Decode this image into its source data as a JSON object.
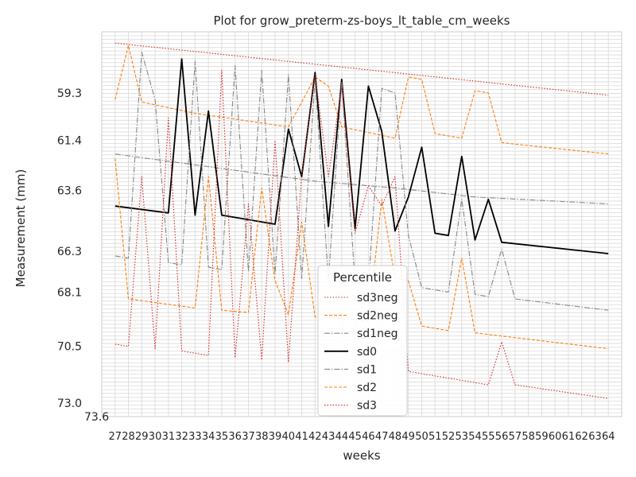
{
  "chart_data": {
    "type": "line",
    "title": "Plot for grow_preterm-zs-boys_lt_table_cm_weeks",
    "xlabel": "weeks",
    "ylabel": "Measurement (mm)",
    "x": [
      27,
      28,
      29,
      30,
      31,
      32,
      33,
      34,
      35,
      36,
      37,
      38,
      39,
      40,
      41,
      42,
      43,
      44,
      45,
      46,
      47,
      48,
      49,
      50,
      51,
      52,
      53,
      54,
      55,
      56,
      57,
      58,
      59,
      60,
      61,
      62,
      63,
      64
    ],
    "x_tick_labels": [
      "27",
      "28",
      "29",
      "30",
      "31",
      "32",
      "33",
      "34",
      "35",
      "36",
      "37",
      "38",
      "39",
      "40",
      "41",
      "42",
      "43",
      "44",
      "45",
      "46",
      "47",
      "48",
      "49",
      "50",
      "51",
      "52",
      "53",
      "54",
      "55",
      "56",
      "57",
      "58",
      "59",
      "60",
      "61",
      "62",
      "63",
      "64"
    ],
    "y_axis_inverted": true,
    "ylim": [
      56.6,
      73.6
    ],
    "y_tick_labels_readable": [
      "59.3",
      "61.4",
      "63.6",
      "66.3",
      "68.1",
      "70.5",
      "73.0",
      "73.6"
    ],
    "y_tick_values_readable": [
      59.3,
      61.4,
      63.6,
      66.3,
      68.1,
      70.5,
      73.0,
      73.6
    ],
    "legend": {
      "title": "Percentile",
      "placement": "lower-center"
    },
    "grid": true,
    "series": [
      {
        "name": "sd3neg",
        "color": "#d62728",
        "dash": "1.5,2",
        "values": [
          [
            27,
            57.1
          ],
          [
            64,
            59.4
          ]
        ]
      },
      {
        "name": "sd2neg",
        "color": "#ff7f0e",
        "dash": "4,2",
        "values": [
          [
            27,
            59.6
          ],
          [
            28,
            57.2
          ],
          [
            29,
            59.7
          ],
          [
            33,
            60.2
          ],
          [
            40,
            60.8
          ],
          [
            42,
            58.6
          ],
          [
            43,
            59.0
          ],
          [
            44,
            60.8
          ],
          [
            48,
            61.3
          ],
          [
            49,
            58.6
          ],
          [
            50,
            58.7
          ],
          [
            51,
            61.1
          ],
          [
            53,
            61.3
          ],
          [
            54,
            59.2
          ],
          [
            55,
            59.3
          ],
          [
            56,
            61.5
          ],
          [
            64,
            62.0
          ]
        ]
      },
      {
        "name": "sd1neg",
        "color": "#888888",
        "dash": "7,2,1.5,2",
        "values": [
          [
            27,
            62.0
          ],
          [
            42,
            63.2
          ],
          [
            48,
            63.5
          ],
          [
            54,
            63.9
          ],
          [
            64,
            64.2
          ]
        ]
      },
      {
        "name": "sd0",
        "color": "#000000",
        "dash": "",
        "values": [
          [
            27,
            64.3
          ],
          [
            31,
            64.6
          ],
          [
            32,
            57.8
          ],
          [
            33,
            64.7
          ],
          [
            34,
            60.1
          ],
          [
            35,
            64.7
          ],
          [
            39,
            65.1
          ],
          [
            40,
            60.9
          ],
          [
            41,
            63.0
          ],
          [
            42,
            58.4
          ],
          [
            43,
            65.2
          ],
          [
            44,
            58.7
          ],
          [
            45,
            65.3
          ],
          [
            46,
            59.0
          ],
          [
            47,
            61.0
          ],
          [
            48,
            65.4
          ],
          [
            49,
            63.9
          ],
          [
            50,
            61.7
          ],
          [
            51,
            65.5
          ],
          [
            52,
            65.6
          ],
          [
            53,
            62.1
          ],
          [
            54,
            65.8
          ],
          [
            55,
            64.0
          ],
          [
            56,
            65.9
          ],
          [
            64,
            66.4
          ]
        ]
      },
      {
        "name": "sd1",
        "color": "#888888",
        "dash": "7,2,1.5,2",
        "values": [
          [
            27,
            66.5
          ],
          [
            28,
            66.6
          ],
          [
            29,
            57.5
          ],
          [
            30,
            59.6
          ],
          [
            31,
            66.8
          ],
          [
            32,
            66.9
          ],
          [
            33,
            57.9
          ],
          [
            34,
            67.0
          ],
          [
            35,
            67.1
          ],
          [
            36,
            58.1
          ],
          [
            37,
            67.2
          ],
          [
            38,
            58.3
          ],
          [
            39,
            67.3
          ],
          [
            40,
            58.5
          ],
          [
            41,
            67.5
          ],
          [
            42,
            58.7
          ],
          [
            43,
            67.6
          ],
          [
            44,
            58.8
          ],
          [
            45,
            67.7
          ],
          [
            46,
            67.8
          ],
          [
            47,
            59.1
          ],
          [
            48,
            59.3
          ],
          [
            49,
            65.6
          ],
          [
            50,
            67.9
          ],
          [
            51,
            68.0
          ],
          [
            52,
            68.1
          ],
          [
            53,
            64.0
          ],
          [
            54,
            68.2
          ],
          [
            55,
            68.3
          ],
          [
            56,
            66.2
          ],
          [
            57,
            68.4
          ],
          [
            64,
            68.9
          ]
        ]
      },
      {
        "name": "sd2",
        "color": "#ff7f0e",
        "dash": "4,2",
        "values": [
          [
            27,
            62.2
          ],
          [
            28,
            68.4
          ],
          [
            33,
            68.8
          ],
          [
            34,
            63.0
          ],
          [
            35,
            68.9
          ],
          [
            37,
            69.0
          ],
          [
            38,
            63.5
          ],
          [
            39,
            67.6
          ],
          [
            40,
            69.1
          ],
          [
            41,
            65.0
          ],
          [
            42,
            69.2
          ],
          [
            45,
            69.3
          ],
          [
            46,
            69.4
          ],
          [
            47,
            64.0
          ],
          [
            48,
            67.5
          ],
          [
            49,
            67.6
          ],
          [
            50,
            69.6
          ],
          [
            52,
            69.8
          ],
          [
            53,
            66.6
          ],
          [
            54,
            69.9
          ],
          [
            64,
            70.6
          ]
        ]
      },
      {
        "name": "sd3",
        "color": "#d62728",
        "dash": "1.5,2",
        "values": [
          [
            27,
            70.4
          ],
          [
            28,
            70.5
          ],
          [
            29,
            63.0
          ],
          [
            30,
            70.6
          ],
          [
            31,
            60.4
          ],
          [
            32,
            70.7
          ],
          [
            34,
            70.9
          ],
          [
            35,
            58.3
          ],
          [
            36,
            71.0
          ],
          [
            37,
            64.2
          ],
          [
            38,
            71.1
          ],
          [
            39,
            61.4
          ],
          [
            40,
            71.2
          ],
          [
            41,
            62.9
          ],
          [
            42,
            58.5
          ],
          [
            43,
            63.0
          ],
          [
            44,
            59.0
          ],
          [
            45,
            65.5
          ],
          [
            46,
            63.4
          ],
          [
            47,
            64.3
          ],
          [
            48,
            63.0
          ],
          [
            49,
            71.6
          ],
          [
            54,
            72.1
          ],
          [
            55,
            72.2
          ],
          [
            56,
            70.3
          ],
          [
            57,
            72.2
          ],
          [
            64,
            72.8
          ]
        ]
      }
    ]
  }
}
